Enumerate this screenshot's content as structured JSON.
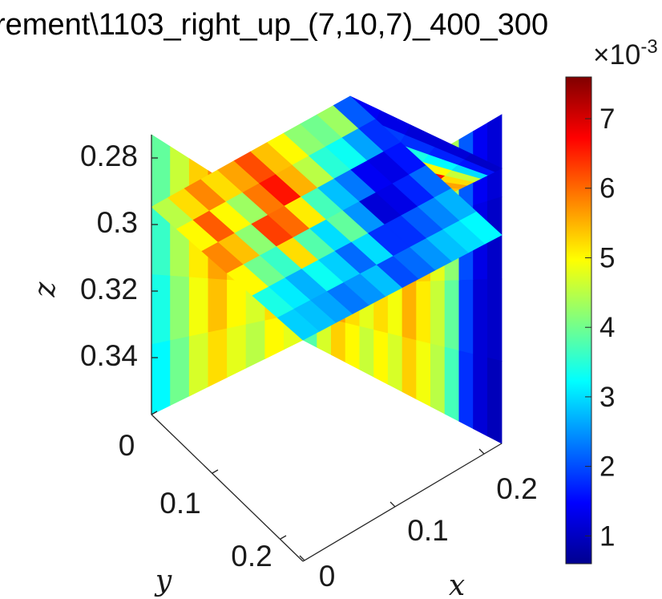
{
  "chart_data": {
    "type": "heatmap",
    "title": "rement\\1103_right_up_(7,10,7)_400_300",
    "xlabel": "x",
    "ylabel": "y",
    "zlabel": "z",
    "x_ticks": [
      "0",
      "0.1",
      "0.2"
    ],
    "y_ticks": [
      "0",
      "0.1",
      "0.2"
    ],
    "z_ticks": [
      "0.28",
      "0.3",
      "0.32",
      "0.34"
    ],
    "z_reversed": true,
    "colormap": "jet",
    "colorbar": {
      "exponent_label": "×10",
      "exponent": "-3",
      "ticks": [
        "1",
        "2",
        "3",
        "4",
        "5",
        "6",
        "7"
      ],
      "range": [
        0.6,
        7.6
      ]
    },
    "slices": [
      {
        "name": "slice-plane-xz",
        "rows": 4,
        "values": [
          [
            4.6,
            5.0,
            6.2,
            5.2,
            4.9,
            5.6,
            5.1,
            6.0,
            5.4,
            5.0,
            4.4,
            2.1,
            1.4,
            1.2
          ],
          [
            4.5,
            5.1,
            5.9,
            5.3,
            5.0,
            5.4,
            5.0,
            5.8,
            5.3,
            4.8,
            4.2,
            2.0,
            1.3,
            1.1
          ],
          [
            4.2,
            4.9,
            5.6,
            5.2,
            4.8,
            5.2,
            4.9,
            5.5,
            5.1,
            4.6,
            3.9,
            1.9,
            1.2,
            1.1
          ],
          [
            3.8,
            4.7,
            5.3,
            5.0,
            4.6,
            5.0,
            4.7,
            5.3,
            4.9,
            4.5,
            3.7,
            1.8,
            1.2,
            1.0
          ]
        ]
      },
      {
        "name": "slice-plane-yz",
        "rows": 4,
        "values": [
          [
            3.9,
            4.6,
            5.3,
            5.8,
            5.4,
            5.0,
            5.6,
            5.2
          ],
          [
            3.6,
            4.4,
            5.1,
            5.6,
            5.2,
            4.9,
            5.4,
            5.0
          ],
          [
            3.4,
            4.2,
            4.9,
            5.4,
            5.0,
            4.7,
            5.2,
            4.9
          ],
          [
            3.2,
            4.0,
            4.7,
            5.2,
            4.8,
            4.5,
            5.0,
            4.8
          ]
        ]
      },
      {
        "name": "slice-plane-xy",
        "values": [
          [
            4.5,
            5.2,
            5.8,
            5.2,
            5.6,
            6.2,
            5.4,
            5.0,
            4.2,
            4.0,
            4.3,
            2.1
          ],
          [
            5.0,
            6.1,
            5.0,
            4.3,
            5.9,
            6.6,
            5.5,
            4.5,
            3.5,
            3.3,
            2.6,
            1.8
          ],
          [
            5.8,
            5.4,
            4.2,
            6.3,
            6.0,
            5.1,
            3.7,
            2.8,
            2.3,
            1.4,
            1.3,
            1.6
          ],
          [
            5.0,
            4.0,
            3.6,
            5.2,
            3.8,
            3.0,
            3.9,
            2.5,
            1.2,
            1.3,
            1.7,
            2.2
          ],
          [
            3.4,
            3.1,
            2.7,
            3.3,
            2.9,
            2.2,
            3.0,
            1.8,
            1.8,
            2.1,
            2.4,
            2.7
          ],
          [
            2.9,
            2.8,
            2.6,
            2.3,
            2.5,
            2.8,
            2.0,
            2.2,
            2.5,
            2.8,
            3.0,
            3.2
          ]
        ]
      },
      {
        "name": "slice-plane-top-xz",
        "rows": 5,
        "values": [
          [
            5.0,
            6.2,
            5.3,
            5.8,
            6.4,
            5.6,
            5.0,
            3.8,
            2.0,
            1.4
          ],
          [
            4.8,
            6.0,
            5.0,
            6.6,
            7.4,
            6.8,
            5.2,
            3.6,
            1.9,
            1.3
          ],
          [
            5.2,
            5.8,
            5.4,
            6.2,
            7.0,
            6.4,
            5.4,
            3.4,
            1.8,
            1.2
          ],
          [
            5.6,
            6.0,
            5.6,
            5.6,
            5.9,
            6.6,
            5.0,
            3.2,
            1.7,
            1.2
          ],
          [
            5.2,
            5.5,
            5.2,
            5.4,
            5.6,
            5.2,
            4.6,
            3.0,
            1.6,
            1.1
          ]
        ]
      }
    ]
  }
}
